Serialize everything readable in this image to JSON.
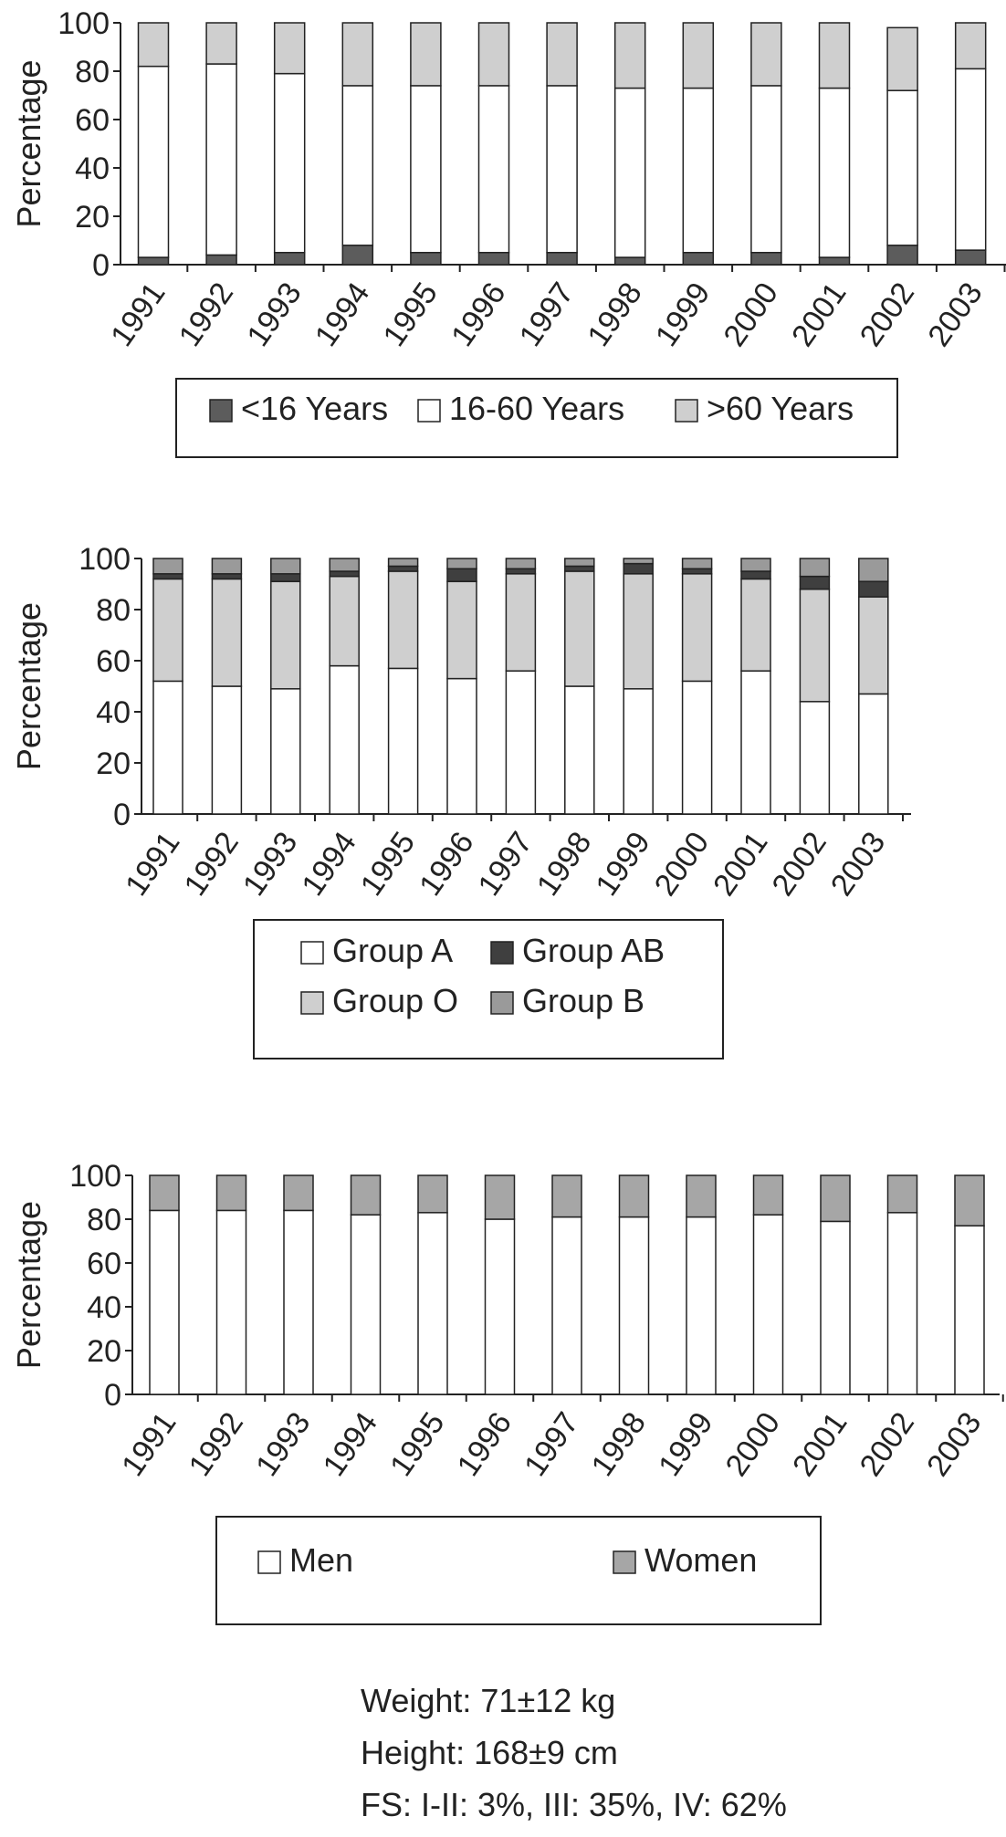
{
  "chart_data": [
    {
      "type": "bar",
      "stacked": true,
      "title": "",
      "xlabel": "",
      "ylabel": "Percentage",
      "ylim": [
        0,
        100
      ],
      "yticks": [
        0,
        20,
        40,
        60,
        80,
        100
      ],
      "categories": [
        "1991",
        "1992",
        "1993",
        "1994",
        "1995",
        "1996",
        "1997",
        "1998",
        "1999",
        "2000",
        "2001",
        "2002",
        "2003"
      ],
      "series": [
        {
          "name": "<16 Years",
          "color": "#5c5c5c",
          "values": [
            3,
            4,
            5,
            8,
            5,
            5,
            5,
            3,
            5,
            5,
            3,
            8,
            6
          ]
        },
        {
          "name": "16-60 Years",
          "color": "#ffffff",
          "values": [
            79,
            79,
            74,
            66,
            69,
            69,
            69,
            70,
            68,
            69,
            70,
            64,
            75
          ]
        },
        {
          "name": ">60 Years",
          "color": "#cfcfcf",
          "values": [
            18,
            17,
            21,
            26,
            26,
            26,
            26,
            27,
            27,
            26,
            27,
            26,
            19
          ]
        }
      ],
      "legend_position": "bottom"
    },
    {
      "type": "bar",
      "stacked": true,
      "title": "",
      "xlabel": "",
      "ylabel": "Percentage",
      "ylim": [
        0,
        100
      ],
      "yticks": [
        0,
        20,
        40,
        60,
        80,
        100
      ],
      "categories": [
        "1991",
        "1992",
        "1993",
        "1994",
        "1995",
        "1996",
        "1997",
        "1998",
        "1999",
        "2000",
        "2001",
        "2002",
        "2003"
      ],
      "series": [
        {
          "name": "Group A",
          "color": "#ffffff",
          "values": [
            52,
            50,
            49,
            58,
            57,
            53,
            56,
            50,
            49,
            52,
            56,
            44,
            47
          ]
        },
        {
          "name": "Group O",
          "color": "#cfcfcf",
          "values": [
            40,
            42,
            42,
            35,
            38,
            38,
            38,
            45,
            45,
            42,
            36,
            44,
            38
          ]
        },
        {
          "name": "Group AB",
          "color": "#3f3f3f",
          "values": [
            2,
            2,
            3,
            2,
            2,
            5,
            2,
            2,
            4,
            2,
            3,
            5,
            6
          ]
        },
        {
          "name": "Group B",
          "color": "#9a9a9a",
          "values": [
            6,
            6,
            6,
            5,
            3,
            4,
            4,
            3,
            2,
            4,
            5,
            7,
            9
          ]
        }
      ],
      "legend_order": [
        "Group A",
        "Group AB",
        "Group O",
        "Group B"
      ],
      "legend_position": "bottom"
    },
    {
      "type": "bar",
      "stacked": true,
      "title": "",
      "xlabel": "",
      "ylabel": "Percentage",
      "ylim": [
        0,
        100
      ],
      "yticks": [
        0,
        20,
        40,
        60,
        80,
        100
      ],
      "categories": [
        "1991",
        "1992",
        "1993",
        "1994",
        "1995",
        "1996",
        "1997",
        "1998",
        "1999",
        "2000",
        "2001",
        "2002",
        "2003"
      ],
      "series": [
        {
          "name": "Men",
          "color": "#ffffff",
          "values": [
            84,
            84,
            84,
            82,
            83,
            80,
            81,
            81,
            81,
            82,
            79,
            83,
            77
          ]
        },
        {
          "name": "Women",
          "color": "#a6a6a6",
          "values": [
            16,
            16,
            16,
            18,
            17,
            20,
            19,
            19,
            19,
            18,
            21,
            17,
            23
          ]
        }
      ],
      "legend_position": "bottom"
    }
  ],
  "stats": {
    "weight": "Weight: 71±12 kg",
    "height": "Height: 168±9 cm",
    "fs": "FS: I-II: 3%, III: 35%, IV: 62%"
  }
}
